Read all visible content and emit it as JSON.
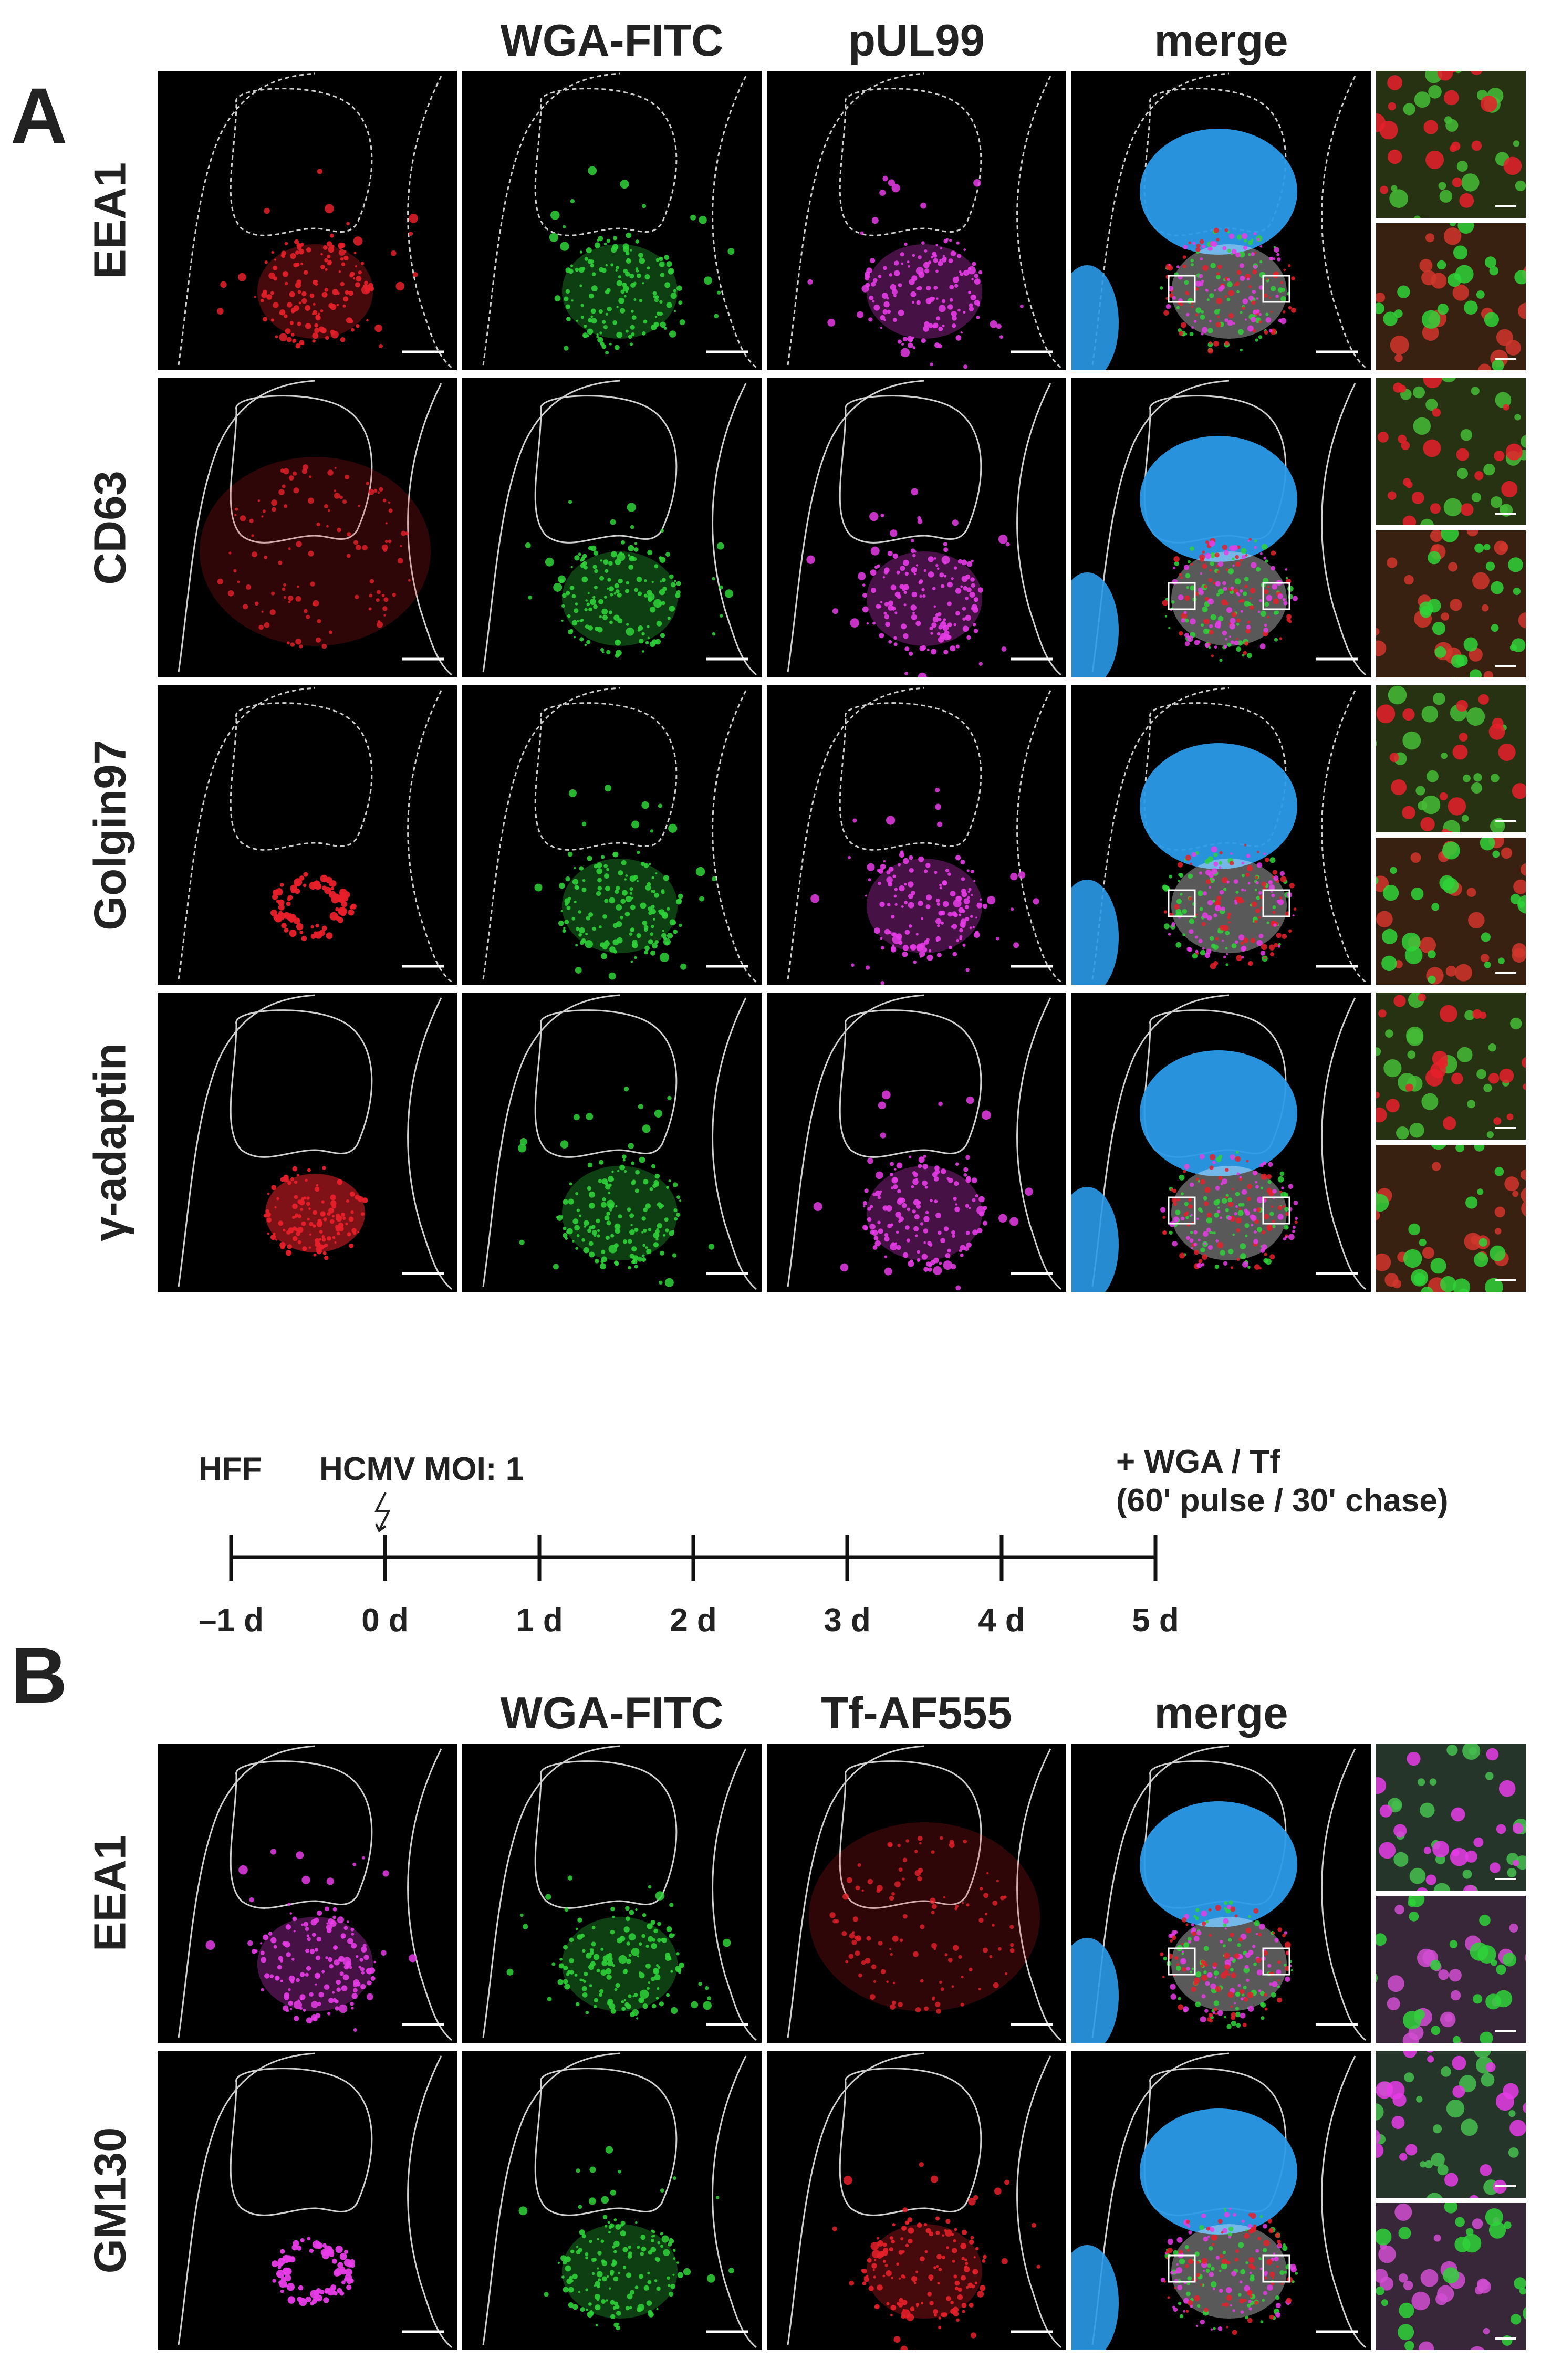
{
  "panel_a": {
    "letter": "A",
    "columns": [
      "WGA-FITC",
      "pUL99",
      "merge"
    ],
    "rows": [
      "EEA1",
      "CD63",
      "Golgin97",
      "γ-adaptin"
    ]
  },
  "timeline": {
    "start_label": "HFF",
    "infection_label": "HCMV MOI: 1",
    "infection_icon": "lightning-icon",
    "treatment_label_1": "+ WGA / Tf",
    "treatment_label_2": "(60' pulse / 30' chase)",
    "ticks": [
      "–1 d",
      "0 d",
      "1 d",
      "2 d",
      "3 d",
      "4 d",
      "5 d"
    ]
  },
  "panel_b": {
    "letter": "B",
    "columns": [
      "WGA-FITC",
      "Tf-AF555",
      "merge"
    ],
    "rows": [
      "EEA1",
      "GM130"
    ]
  },
  "colors": {
    "red": "#e8202a",
    "green": "#2fd23a",
    "magenta": "#e83ce8",
    "blue": "#2a9ae8",
    "outline": "#cfcfcf"
  }
}
